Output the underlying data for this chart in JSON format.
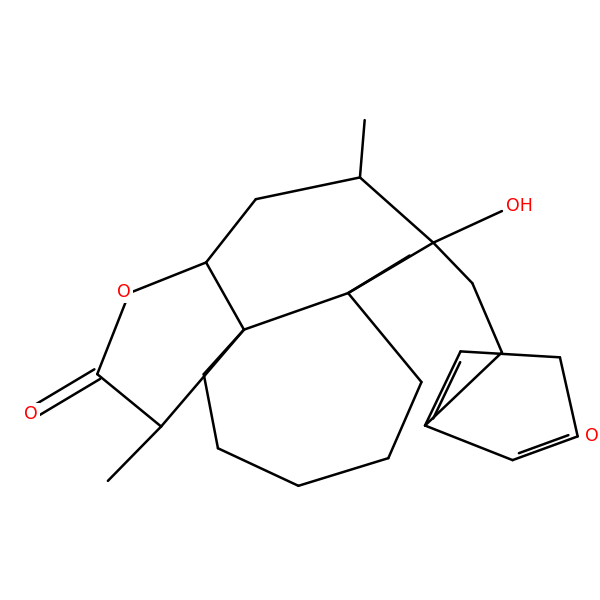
{
  "bg_color": "#ffffff",
  "bond_color": "#000000",
  "heteroatom_color": "#ff0000",
  "line_width": 1.8,
  "font_size": 12.5,
  "fig_size": [
    6.0,
    6.0
  ],
  "dpi": 100,
  "xlim": [
    0.0,
    9.5
  ],
  "ylim": [
    2.2,
    9.5
  ]
}
